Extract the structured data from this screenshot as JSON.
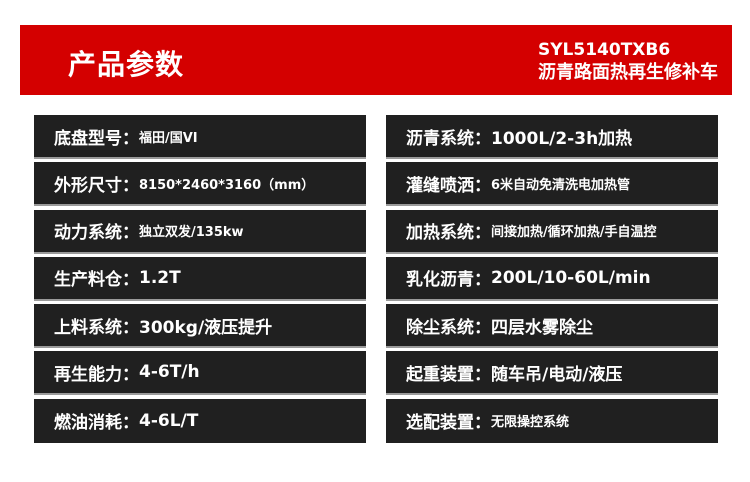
{
  "header": {
    "title": "产品参数",
    "model": "SYL5140TXB6",
    "name": "沥青路面热再生修补车",
    "color": "#d40000"
  },
  "left": [
    {
      "label": "底盘型号：",
      "value": "福田/国VI",
      "size": "sm"
    },
    {
      "label": "外形尺寸：",
      "value": "8150*2460*3160（mm）",
      "size": "sm"
    },
    {
      "label": "动力系统：",
      "value": "独立双发/135kw",
      "size": "sm"
    },
    {
      "label": "生产料仓：",
      "value": "1.2T",
      "size": "big"
    },
    {
      "label": "上料系统：",
      "value": "300kg/液压提升",
      "size": "big"
    },
    {
      "label": "再生能力：",
      "value": "4-6T/h",
      "size": "big"
    },
    {
      "label": "燃油消耗：",
      "value": "4-6L/T",
      "size": "big"
    }
  ],
  "right": [
    {
      "label": "沥青系统：",
      "value": "1000L/2-3h加热",
      "size": "big"
    },
    {
      "label": "灌缝喷洒：",
      "value": "6米自动免清洗电加热管",
      "size": "sm"
    },
    {
      "label": "加热系统：",
      "value": "间接加热/循环加热/手自温控",
      "size": "sm"
    },
    {
      "label": "乳化沥青：",
      "value": "200L/10-60L/min",
      "size": "big"
    },
    {
      "label": "除尘系统：",
      "value": "四层水雾除尘",
      "size": "big"
    },
    {
      "label": "起重装置：",
      "value": "随车吊/电动/液压",
      "size": "big"
    },
    {
      "label": "选配装置：",
      "value": "无限操控系统",
      "size": "sm"
    }
  ]
}
